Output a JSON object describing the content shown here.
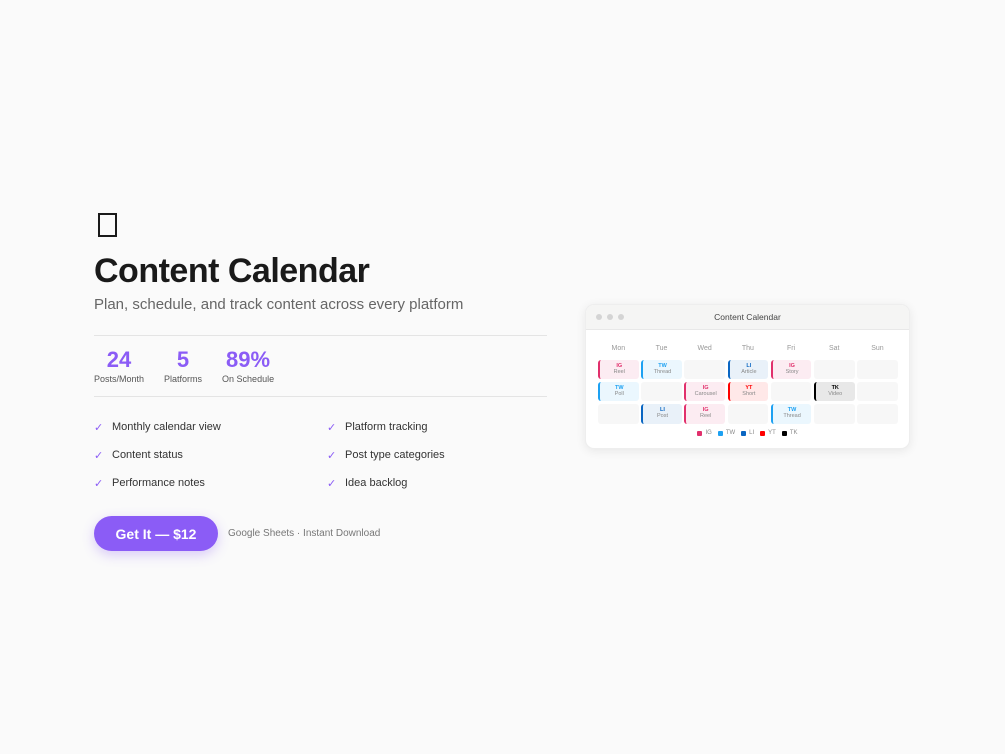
{
  "hero": {
    "icon": "calendar-icon",
    "title": "Content Calendar",
    "subtitle": "Plan, schedule, and track content across every platform"
  },
  "stats": [
    {
      "value": "24",
      "label": "Posts/Month"
    },
    {
      "value": "5",
      "label": "Platforms"
    },
    {
      "value": "89%",
      "label": "On Schedule"
    }
  ],
  "features": [
    "Monthly calendar view",
    "Platform tracking",
    "Content status",
    "Post type categories",
    "Performance notes",
    "Idea backlog"
  ],
  "cta": {
    "label": "Get It — $12",
    "note": "Google Sheets · Instant Download"
  },
  "accent": "#8b5cf6",
  "preview": {
    "window_title": "Content Calendar",
    "days": [
      "Mon",
      "Tue",
      "Wed",
      "Thu",
      "Fri",
      "Sat",
      "Sun"
    ],
    "platform_colors": {
      "IG": "#e1306c",
      "TW": "#1da1f2",
      "LI": "#0a66c2",
      "YT": "#ff0000",
      "TK": "#000000"
    },
    "rows": [
      [
        {
          "p": "IG",
          "t": "Reel"
        },
        {
          "p": "TW",
          "t": "Thread"
        },
        null,
        {
          "p": "LI",
          "t": "Article"
        },
        {
          "p": "IG",
          "t": "Story"
        },
        null,
        null
      ],
      [
        {
          "p": "TW",
          "t": "Poll"
        },
        null,
        {
          "p": "IG",
          "t": "Carousel"
        },
        {
          "p": "YT",
          "t": "Short"
        },
        null,
        {
          "p": "TK",
          "t": "Video"
        },
        null
      ],
      [
        null,
        {
          "p": "LI",
          "t": "Post"
        },
        {
          "p": "IG",
          "t": "Reel"
        },
        null,
        {
          "p": "TW",
          "t": "Thread"
        },
        null,
        null
      ]
    ],
    "legend": [
      "IG",
      "TW",
      "LI",
      "YT",
      "TK"
    ]
  }
}
